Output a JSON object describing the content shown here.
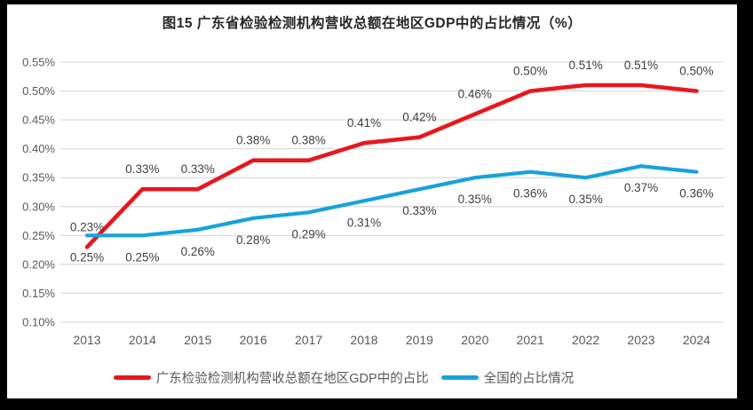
{
  "chart_data": {
    "type": "line",
    "title": "图15  广东省检验检测机构营收总额在地区GDP中的占比情况（%）",
    "categories": [
      "2013",
      "2014",
      "2015",
      "2016",
      "2017",
      "2018",
      "2019",
      "2020",
      "2021",
      "2022",
      "2023",
      "2024"
    ],
    "series": [
      {
        "name": "广东检验检测机构营收总额在地区GDP中的占比",
        "color": "#e8171d",
        "values": [
          0.23,
          0.33,
          0.33,
          0.38,
          0.38,
          0.41,
          0.42,
          0.46,
          0.5,
          0.51,
          0.51,
          0.5
        ],
        "point_labels": [
          "0.23%",
          "0.33%",
          "0.33%",
          "0.38%",
          "0.38%",
          "0.41%",
          "0.42%",
          "0.46%",
          "0.50%",
          "0.51%",
          "0.51%",
          "0.50%"
        ],
        "label_placement": "above"
      },
      {
        "name": "全国的占比情况",
        "color": "#17a2dc",
        "values": [
          0.25,
          0.25,
          0.26,
          0.28,
          0.29,
          0.31,
          0.33,
          0.35,
          0.36,
          0.35,
          0.37,
          0.36
        ],
        "point_labels": [
          "0.25%",
          "0.25%",
          "0.26%",
          "0.28%",
          "0.29%",
          "0.31%",
          "0.33%",
          "0.35%",
          "0.36%",
          "0.35%",
          "0.37%",
          "0.36%"
        ],
        "label_placement": "below"
      }
    ],
    "ylim": [
      0.1,
      0.55
    ],
    "ytick_step": 0.05,
    "ytick_labels": [
      "0.10%",
      "0.15%",
      "0.20%",
      "0.25%",
      "0.30%",
      "0.35%",
      "0.40%",
      "0.45%",
      "0.50%",
      "0.55%"
    ],
    "xlabel": "",
    "ylabel": "",
    "grid": true,
    "legend_position": "bottom"
  },
  "colors": {
    "frame": "#000000",
    "background": "#ffffff",
    "gridline": "#d9d9d9",
    "axis_tick_text": "#595959",
    "data_label_text": "#3f3f3f",
    "title_text": "#262626"
  }
}
